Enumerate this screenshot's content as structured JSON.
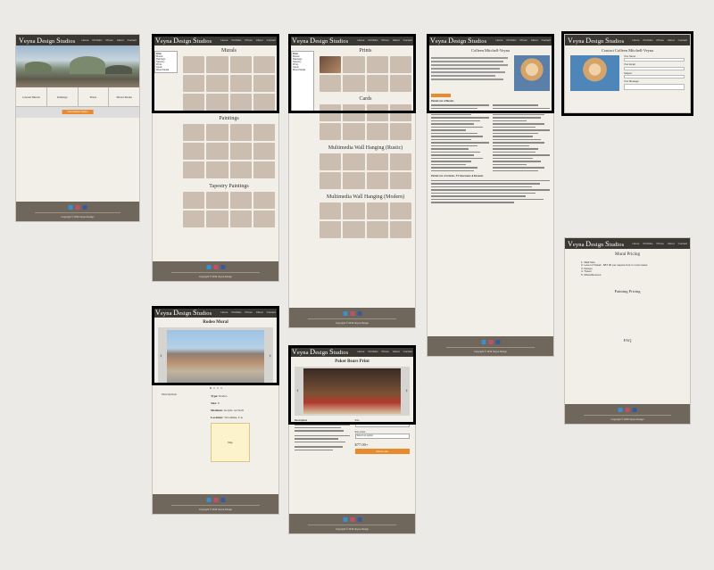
{
  "site": {
    "logo": "Veyna Design Studios",
    "logo_parts": [
      "V",
      "eyna ",
      "D",
      "esign ",
      "S",
      "tudios"
    ],
    "nav": [
      "Home",
      "Portfolio",
      "Prices",
      "About",
      "Contact"
    ],
    "copyright": "Copyright © 2019 Veyna Design"
  },
  "home": {
    "categories": [
      "Custom Murals",
      "Paintings",
      "Prints",
      "Mixed Media"
    ],
    "cta": "Commission Inquiry"
  },
  "murals": {
    "sections": [
      "Murals",
      "Paintings",
      "Tapestry Paintings"
    ],
    "sidebar_title": "Filter",
    "sidebar_items": [
      "Murals",
      "Paintings",
      "Tapestry",
      "Prints",
      "Cards",
      "Mixed Media"
    ]
  },
  "prints": {
    "sections": [
      "Prints",
      "Cards",
      "Multimedia Wall Hanging (Rustic)",
      "Multimedia Wall Hanging (Modern)"
    ]
  },
  "about": {
    "title": "Colleen Mitchell-Veyna",
    "list_title_1": "Partial List of Murals",
    "list_title_2": "Partial List of Articles, TV Interviews & Reviews"
  },
  "contact": {
    "title": "Contact Colleen Mitchell-Veyna",
    "fields": [
      "Your Name:",
      "Your Email:",
      "Subject:",
      "Your Message:"
    ]
  },
  "pricing": {
    "mural_title": "Mural Pricing",
    "mural_items": [
      "1. Wall Size",
      "2. Level of Detail - $87.00 per square foot in most cases",
      "3. Design",
      "4. Travel",
      "5. Miscellaneous"
    ],
    "painting_title": "Painting Pricing",
    "faq": "FAQ"
  },
  "rodeo": {
    "title": "Rodeo Mural",
    "description_label": "Description:",
    "type_label": "Type:",
    "type_value": "Rodeo",
    "size_label": "Size:",
    "size_value": "0",
    "medium_label": "Medium:",
    "medium_value": "Acrylic on Wall",
    "location_label": "Location:",
    "location_value": "Woodlake, CA",
    "map_label": "Map"
  },
  "poker": {
    "title": "Poker Bears Print",
    "description_label": "Description",
    "size_label": "Size",
    "size_value": "Select a size",
    "color_label": "Size Color",
    "color_value": "Select an option",
    "price": "$77.00+",
    "add_button": "Add to cart"
  },
  "colors": {
    "header": "#3b3833",
    "footer": "#6f675b",
    "tile": "#cbbdb0",
    "accent": "#e88a2d"
  }
}
